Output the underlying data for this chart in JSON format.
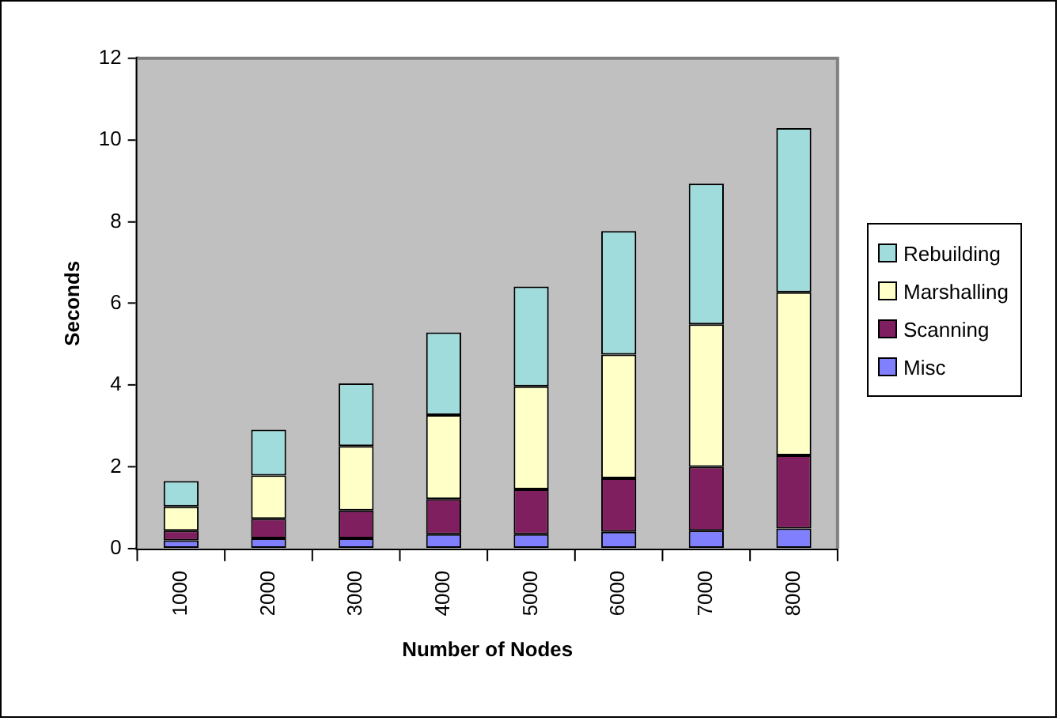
{
  "chart_data": {
    "type": "bar",
    "xlabel": "Number of Nodes",
    "ylabel": "Seconds",
    "categories": [
      "1000",
      "2000",
      "3000",
      "4000",
      "5000",
      "6000",
      "7000",
      "8000"
    ],
    "stacked": true,
    "series": [
      {
        "name": "Misc",
        "color": "#8080ff",
        "values": [
          0.2,
          0.25,
          0.25,
          0.35,
          0.35,
          0.41,
          0.44,
          0.49
        ]
      },
      {
        "name": "Scanning",
        "color": "#7f1f5f",
        "values": [
          0.24,
          0.48,
          0.68,
          0.86,
          1.1,
          1.31,
          1.56,
          1.79
        ]
      },
      {
        "name": "Marshalling",
        "color": "#ffffc8",
        "values": [
          0.59,
          1.06,
          1.58,
          2.06,
          2.52,
          3.03,
          3.49,
          3.99
        ]
      },
      {
        "name": "Rebuilding",
        "color": "#a0dcdc",
        "values": [
          0.62,
          1.12,
          1.53,
          2.02,
          2.44,
          3.02,
          3.44,
          4.02
        ]
      }
    ],
    "ylim": [
      0,
      12
    ],
    "yticks": [
      0,
      2,
      4,
      6,
      8,
      10,
      12
    ],
    "legend": "right"
  }
}
